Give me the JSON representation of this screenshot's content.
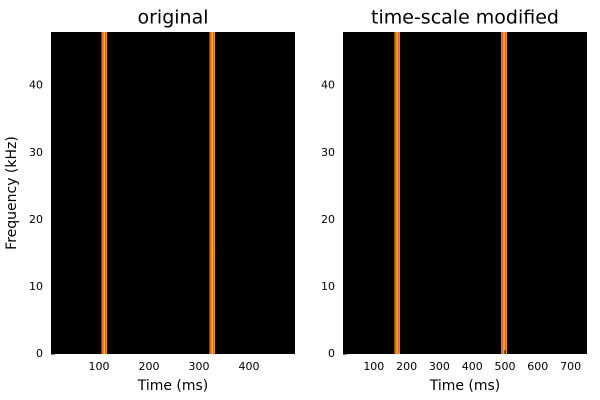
{
  "chart_data": [
    {
      "type": "spectrogram",
      "title": "original",
      "xlabel": "Time (ms)",
      "ylabel": "Frequency (kHz)",
      "xlim": [
        4,
        492
      ],
      "xticks": [
        100,
        200,
        300,
        400
      ],
      "ylim": [
        0,
        48
      ],
      "yticks": [
        0,
        10,
        20,
        30,
        40
      ],
      "background": "#000000",
      "color": "#f98c0a",
      "bands": {
        "start": [
          105,
          321
        ],
        "end": [
          116,
          332
        ]
      }
    },
    {
      "type": "spectrogram",
      "title": "time-scale modified",
      "xlabel": "Time (ms)",
      "xlim": [
        6,
        750
      ],
      "xticks": [
        100,
        200,
        300,
        400,
        500,
        600,
        700
      ],
      "ylim": [
        0,
        48
      ],
      "yticks": [
        0,
        10,
        20,
        30,
        40
      ],
      "background": "#000000",
      "color": "#f98c0a",
      "bands": {
        "start": [
          163,
          488
        ],
        "end": [
          180,
          506
        ]
      }
    }
  ]
}
